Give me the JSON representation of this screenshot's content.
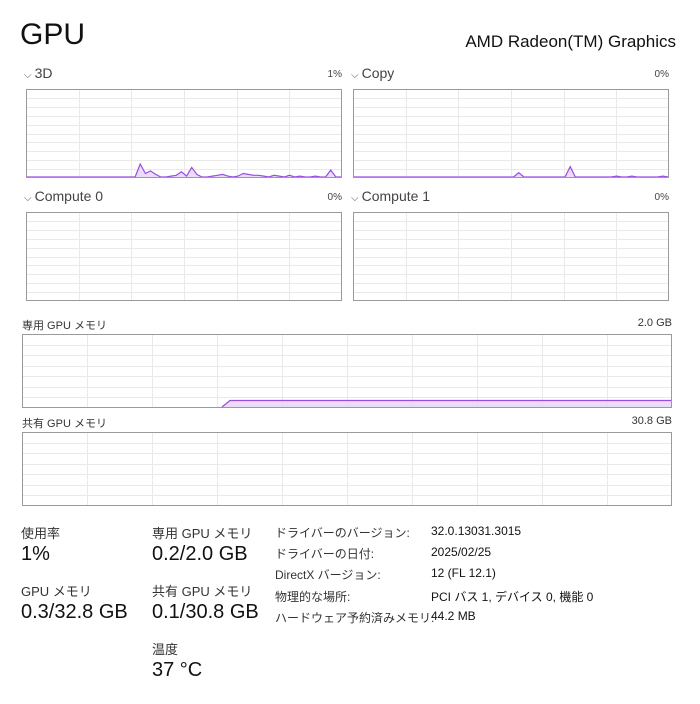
{
  "header": {
    "title": "GPU",
    "device": "AMD Radeon(TM) Graphics"
  },
  "engines": [
    {
      "name": "3D",
      "value": "1%",
      "series": [
        0,
        0,
        0,
        0,
        0,
        0,
        0,
        0,
        0,
        0,
        0,
        0,
        0,
        0,
        0,
        0,
        0,
        0,
        0,
        0,
        0,
        0,
        15,
        4,
        7,
        3,
        0,
        0,
        1,
        2,
        6,
        1,
        11,
        3,
        0,
        0,
        1,
        2,
        3,
        1,
        0,
        1,
        4,
        3,
        2,
        2,
        1,
        0,
        2,
        1,
        0,
        2,
        0,
        1,
        0,
        0,
        1,
        0,
        0,
        8,
        0,
        0
      ],
      "expanded": true
    },
    {
      "name": "Copy",
      "value": "0%",
      "series": [
        0,
        0,
        0,
        0,
        0,
        0,
        0,
        0,
        0,
        0,
        0,
        0,
        0,
        0,
        0,
        0,
        0,
        0,
        0,
        0,
        0,
        0,
        0,
        0,
        0,
        0,
        0,
        0,
        0,
        0,
        0,
        0,
        5,
        0,
        0,
        0,
        0,
        0,
        0,
        0,
        0,
        0,
        12,
        0,
        0,
        0,
        0,
        0,
        0,
        0,
        0,
        1,
        0,
        0,
        1,
        0,
        0,
        0,
        0,
        0,
        1,
        0
      ],
      "expanded": true
    },
    {
      "name": "Compute 0",
      "value": "0%",
      "series": [],
      "expanded": true
    },
    {
      "name": "Compute 1",
      "value": "0%",
      "series": [],
      "expanded": true
    }
  ],
  "memory_graphs": [
    {
      "label": "専用 GPU メモリ",
      "max": "2.0 GB",
      "start_fraction": 0.32,
      "level_percent": 9
    },
    {
      "label": "共有 GPU メモリ",
      "max": "30.8 GB",
      "start_fraction": 0.32,
      "level_percent": 0
    }
  ],
  "stats": {
    "utilization": {
      "label": "使用率",
      "value": "1%"
    },
    "gpu_memory": {
      "label": "GPU メモリ",
      "value": "0.3/32.8 GB"
    },
    "dedicated": {
      "label": "専用 GPU メモリ",
      "value": "0.2/2.0 GB"
    },
    "shared": {
      "label": "共有 GPU メモリ",
      "value": "0.1/30.8 GB"
    },
    "temperature": {
      "label": "温度",
      "value": "37 °C"
    }
  },
  "info": [
    {
      "label": "ドライバーのバージョン:",
      "value": "32.0.13031.3015"
    },
    {
      "label": "ドライバーの日付:",
      "value": "2025/02/25"
    },
    {
      "label": "DirectX バージョン:",
      "value": "12 (FL 12.1)"
    },
    {
      "label": "物理的な場所:",
      "value": "PCI バス 1, デバイス 0, 機能 0"
    },
    {
      "label": "ハードウェア予約済みメモリ:",
      "value": "44.2 MB"
    }
  ],
  "colors": {
    "line": "#9b4de0",
    "fill": "#e6d4f7",
    "border": "#9a9a9a",
    "grid": "#e9e9e9"
  }
}
